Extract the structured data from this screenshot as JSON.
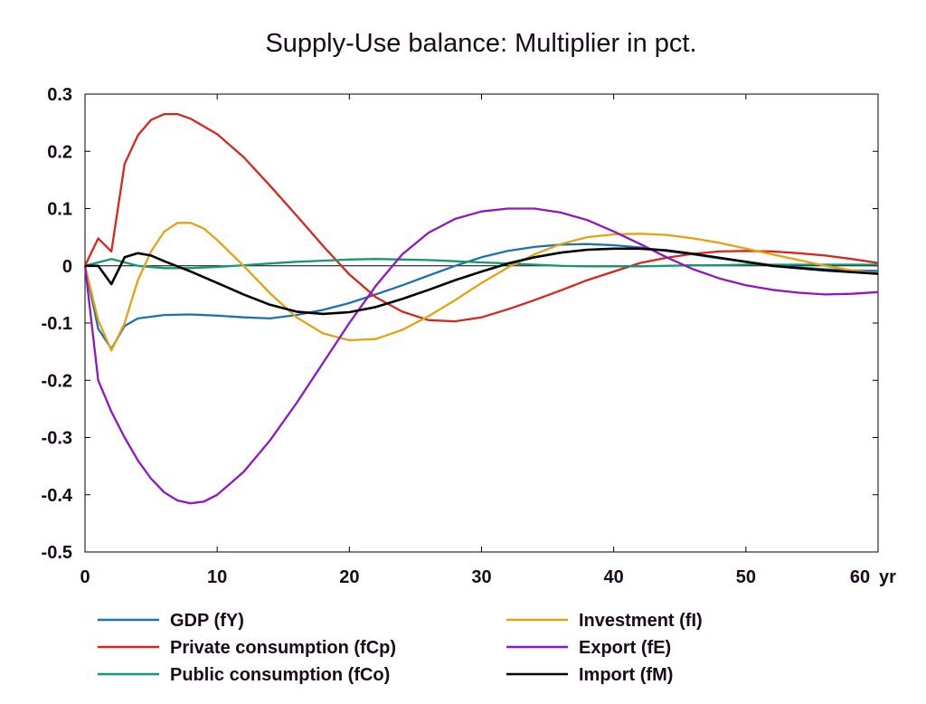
{
  "chart_data": {
    "type": "line",
    "title": "Supply-Use balance: Multiplier in pct.",
    "xlabel": "",
    "ylabel": "",
    "x_unit_label": "yr",
    "xlim": [
      0,
      60
    ],
    "ylim": [
      -0.5,
      0.3
    ],
    "x_ticks": [
      0,
      10,
      20,
      30,
      40,
      50,
      60
    ],
    "y_ticks": [
      0.3,
      0.2,
      0.1,
      0,
      -0.1,
      -0.2,
      -0.3,
      -0.4,
      -0.5
    ],
    "grid": false,
    "legend_position": "bottom",
    "series": [
      {
        "name": "GDP (fY)",
        "color": "#1a73b0",
        "points": [
          [
            0,
            0
          ],
          [
            1,
            -0.11
          ],
          [
            2,
            -0.145
          ],
          [
            3,
            -0.105
          ],
          [
            4,
            -0.092
          ],
          [
            6,
            -0.086
          ],
          [
            8,
            -0.085
          ],
          [
            10,
            -0.087
          ],
          [
            12,
            -0.09
          ],
          [
            14,
            -0.092
          ],
          [
            16,
            -0.086
          ],
          [
            18,
            -0.077
          ],
          [
            20,
            -0.065
          ],
          [
            22,
            -0.05
          ],
          [
            24,
            -0.034
          ],
          [
            26,
            -0.017
          ],
          [
            28,
            0.0
          ],
          [
            30,
            0.015
          ],
          [
            32,
            0.026
          ],
          [
            34,
            0.033
          ],
          [
            36,
            0.037
          ],
          [
            38,
            0.038
          ],
          [
            40,
            0.036
          ],
          [
            42,
            0.032
          ],
          [
            44,
            0.026
          ],
          [
            46,
            0.02
          ],
          [
            48,
            0.013
          ],
          [
            50,
            0.007
          ],
          [
            52,
            0.001
          ],
          [
            54,
            -0.003
          ],
          [
            56,
            -0.006
          ],
          [
            58,
            -0.008
          ],
          [
            60,
            -0.009
          ]
        ]
      },
      {
        "name": "Private consumption (fCp)",
        "color": "#d7261e",
        "points": [
          [
            0,
            0
          ],
          [
            1,
            0.048
          ],
          [
            2,
            0.025
          ],
          [
            3,
            0.178
          ],
          [
            4,
            0.228
          ],
          [
            5,
            0.255
          ],
          [
            6,
            0.265
          ],
          [
            7,
            0.265
          ],
          [
            8,
            0.257
          ],
          [
            10,
            0.23
          ],
          [
            12,
            0.19
          ],
          [
            14,
            0.14
          ],
          [
            16,
            0.088
          ],
          [
            18,
            0.035
          ],
          [
            20,
            -0.015
          ],
          [
            22,
            -0.055
          ],
          [
            24,
            -0.08
          ],
          [
            26,
            -0.095
          ],
          [
            28,
            -0.097
          ],
          [
            30,
            -0.09
          ],
          [
            32,
            -0.076
          ],
          [
            34,
            -0.06
          ],
          [
            36,
            -0.043
          ],
          [
            38,
            -0.025
          ],
          [
            40,
            -0.01
          ],
          [
            42,
            0.005
          ],
          [
            44,
            0.014
          ],
          [
            46,
            0.021
          ],
          [
            48,
            0.025
          ],
          [
            50,
            0.026
          ],
          [
            52,
            0.025
          ],
          [
            54,
            0.022
          ],
          [
            56,
            0.018
          ],
          [
            58,
            0.012
          ],
          [
            60,
            0.005
          ]
        ]
      },
      {
        "name": "Public consumption (fCo)",
        "color": "#119a72",
        "points": [
          [
            0,
            0
          ],
          [
            1,
            0.006
          ],
          [
            2,
            0.012
          ],
          [
            3,
            0.006
          ],
          [
            4,
            0.0
          ],
          [
            6,
            -0.004
          ],
          [
            8,
            -0.004
          ],
          [
            10,
            -0.002
          ],
          [
            12,
            0.001
          ],
          [
            14,
            0.004
          ],
          [
            16,
            0.007
          ],
          [
            18,
            0.009
          ],
          [
            20,
            0.011
          ],
          [
            22,
            0.012
          ],
          [
            24,
            0.011
          ],
          [
            26,
            0.01
          ],
          [
            28,
            0.008
          ],
          [
            30,
            0.006
          ],
          [
            32,
            0.004
          ],
          [
            34,
            0.002
          ],
          [
            36,
            0.0
          ],
          [
            38,
            -0.001
          ],
          [
            40,
            -0.001
          ],
          [
            42,
            -0.001
          ],
          [
            44,
            0.0
          ],
          [
            46,
            0.001
          ],
          [
            48,
            0.001
          ],
          [
            50,
            0.002
          ],
          [
            52,
            0.002
          ],
          [
            54,
            0.002
          ],
          [
            56,
            0.002
          ],
          [
            58,
            0.002
          ],
          [
            60,
            0.002
          ]
        ]
      },
      {
        "name": "Investment (fI)",
        "color": "#e5a110",
        "points": [
          [
            0,
            0
          ],
          [
            1,
            -0.095
          ],
          [
            2,
            -0.148
          ],
          [
            3,
            -0.1
          ],
          [
            4,
            -0.025
          ],
          [
            5,
            0.025
          ],
          [
            6,
            0.06
          ],
          [
            7,
            0.075
          ],
          [
            8,
            0.075
          ],
          [
            9,
            0.065
          ],
          [
            10,
            0.045
          ],
          [
            12,
            0.0
          ],
          [
            14,
            -0.048
          ],
          [
            16,
            -0.09
          ],
          [
            18,
            -0.118
          ],
          [
            20,
            -0.13
          ],
          [
            22,
            -0.128
          ],
          [
            24,
            -0.112
          ],
          [
            26,
            -0.088
          ],
          [
            28,
            -0.06
          ],
          [
            30,
            -0.03
          ],
          [
            32,
            -0.003
          ],
          [
            34,
            0.02
          ],
          [
            36,
            0.038
          ],
          [
            38,
            0.05
          ],
          [
            40,
            0.055
          ],
          [
            42,
            0.056
          ],
          [
            44,
            0.054
          ],
          [
            46,
            0.048
          ],
          [
            48,
            0.04
          ],
          [
            50,
            0.03
          ],
          [
            52,
            0.02
          ],
          [
            54,
            0.01
          ],
          [
            56,
            0.0
          ],
          [
            58,
            -0.008
          ],
          [
            60,
            -0.013
          ]
        ]
      },
      {
        "name": "Export (fE)",
        "color": "#8f16c2",
        "points": [
          [
            0,
            0
          ],
          [
            1,
            -0.2
          ],
          [
            2,
            -0.255
          ],
          [
            3,
            -0.3
          ],
          [
            4,
            -0.34
          ],
          [
            5,
            -0.372
          ],
          [
            6,
            -0.396
          ],
          [
            7,
            -0.41
          ],
          [
            8,
            -0.415
          ],
          [
            9,
            -0.412
          ],
          [
            10,
            -0.4
          ],
          [
            12,
            -0.36
          ],
          [
            14,
            -0.305
          ],
          [
            16,
            -0.24
          ],
          [
            18,
            -0.17
          ],
          [
            20,
            -0.1
          ],
          [
            22,
            -0.035
          ],
          [
            24,
            0.02
          ],
          [
            26,
            0.058
          ],
          [
            28,
            0.082
          ],
          [
            30,
            0.095
          ],
          [
            32,
            0.1
          ],
          [
            34,
            0.1
          ],
          [
            36,
            0.093
          ],
          [
            38,
            0.08
          ],
          [
            40,
            0.06
          ],
          [
            42,
            0.038
          ],
          [
            44,
            0.015
          ],
          [
            46,
            -0.006
          ],
          [
            48,
            -0.022
          ],
          [
            50,
            -0.034
          ],
          [
            52,
            -0.042
          ],
          [
            54,
            -0.047
          ],
          [
            56,
            -0.05
          ],
          [
            58,
            -0.049
          ],
          [
            60,
            -0.046
          ]
        ]
      },
      {
        "name": "Import (fM)",
        "color": "#000000",
        "points": [
          [
            0,
            0
          ],
          [
            1,
            0.0
          ],
          [
            2,
            -0.032
          ],
          [
            3,
            0.015
          ],
          [
            4,
            0.022
          ],
          [
            5,
            0.018
          ],
          [
            6,
            0.008
          ],
          [
            8,
            -0.01
          ],
          [
            10,
            -0.03
          ],
          [
            12,
            -0.05
          ],
          [
            14,
            -0.068
          ],
          [
            16,
            -0.08
          ],
          [
            18,
            -0.084
          ],
          [
            20,
            -0.081
          ],
          [
            22,
            -0.072
          ],
          [
            24,
            -0.058
          ],
          [
            26,
            -0.042
          ],
          [
            28,
            -0.025
          ],
          [
            30,
            -0.01
          ],
          [
            32,
            0.004
          ],
          [
            34,
            0.015
          ],
          [
            36,
            0.023
          ],
          [
            38,
            0.028
          ],
          [
            40,
            0.03
          ],
          [
            42,
            0.03
          ],
          [
            44,
            0.027
          ],
          [
            46,
            0.021
          ],
          [
            48,
            0.014
          ],
          [
            50,
            0.007
          ],
          [
            52,
            0.0
          ],
          [
            54,
            -0.004
          ],
          [
            56,
            -0.008
          ],
          [
            58,
            -0.011
          ],
          [
            60,
            -0.014
          ]
        ]
      }
    ]
  }
}
